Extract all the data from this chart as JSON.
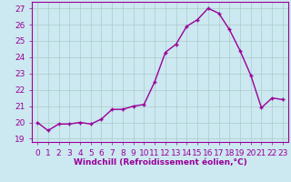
{
  "x": [
    0,
    1,
    2,
    3,
    4,
    5,
    6,
    7,
    8,
    9,
    10,
    11,
    12,
    13,
    14,
    15,
    16,
    17,
    18,
    19,
    20,
    21,
    22,
    23
  ],
  "y": [
    20.0,
    19.5,
    19.9,
    19.9,
    20.0,
    19.9,
    20.2,
    20.8,
    20.8,
    21.0,
    21.1,
    22.5,
    24.3,
    24.8,
    25.9,
    26.3,
    27.0,
    26.7,
    25.7,
    24.4,
    22.9,
    20.9,
    21.5,
    21.4
  ],
  "line_color": "#990099",
  "marker": "+",
  "marker_size": 3,
  "linewidth": 1.0,
  "xlabel": "Windchill (Refroidissement éolien,°C)",
  "xlim": [
    -0.5,
    23.5
  ],
  "ylim": [
    18.8,
    27.4
  ],
  "yticks": [
    19,
    20,
    21,
    22,
    23,
    24,
    25,
    26,
    27
  ],
  "xticks": [
    0,
    1,
    2,
    3,
    4,
    5,
    6,
    7,
    8,
    9,
    10,
    11,
    12,
    13,
    14,
    15,
    16,
    17,
    18,
    19,
    20,
    21,
    22,
    23
  ],
  "background_color": "#cce8f0",
  "grid_color": "#aacccc",
  "tick_color": "#990099",
  "xlabel_fontsize": 6.5,
  "tick_fontsize": 6.5
}
